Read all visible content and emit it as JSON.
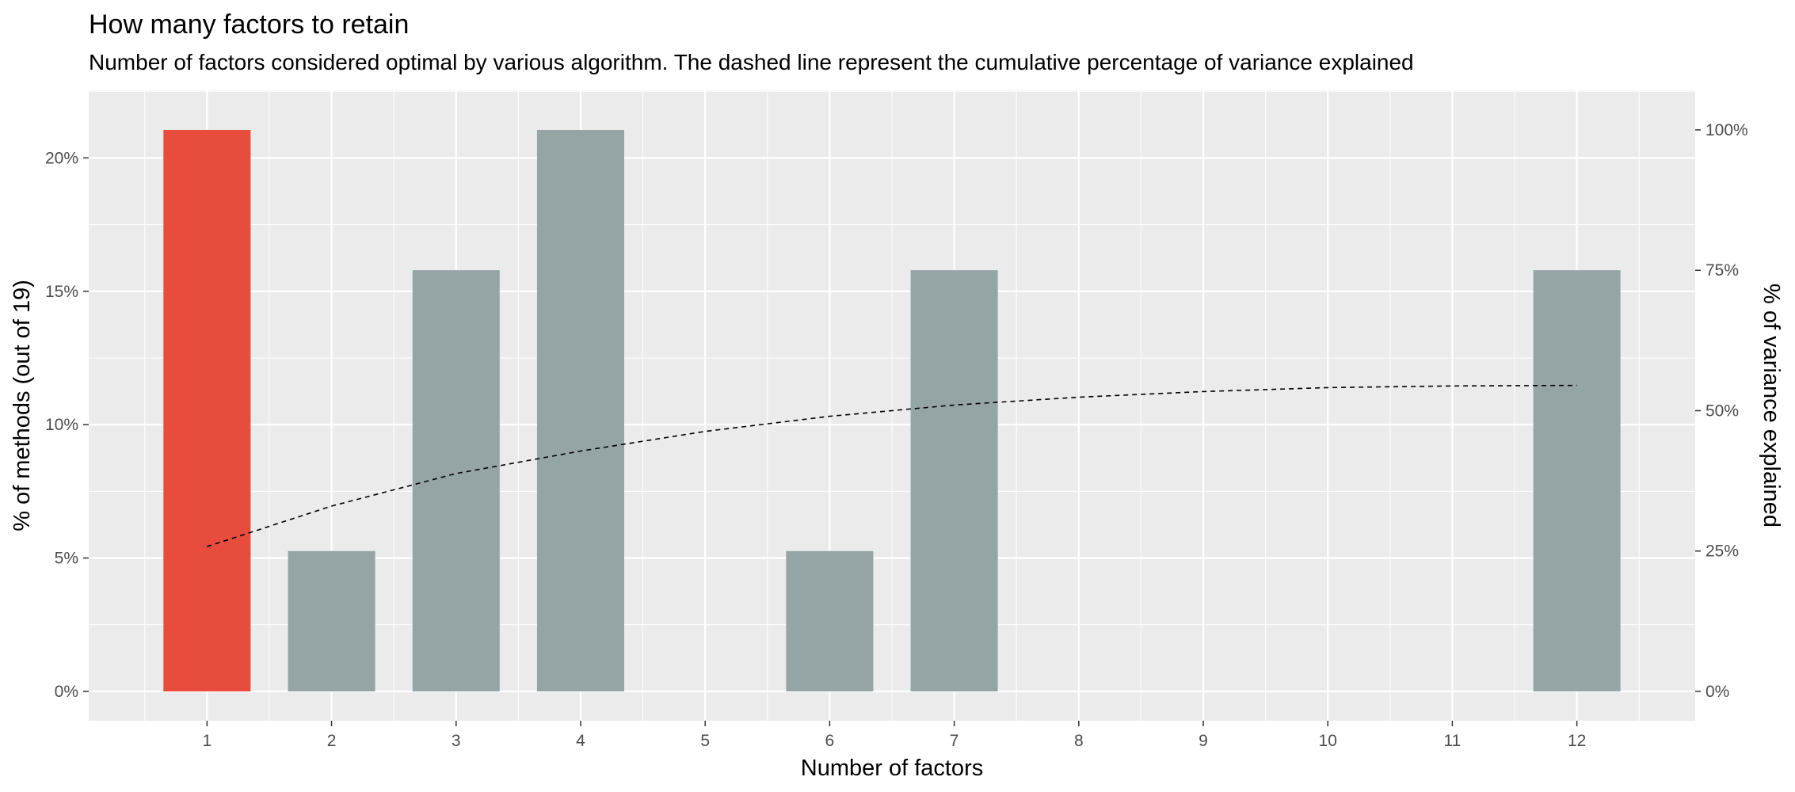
{
  "chart_data": {
    "type": "bar",
    "title": "How many factors to retain",
    "subtitle": "Number of factors considered optimal by various algorithm. The dashed line represent the cumulative percentage of variance explained",
    "xlabel": "Number of factors",
    "ylabel": "% of methods (out of 19)",
    "y2label": "% of variance explained",
    "categories": [
      "1",
      "2",
      "3",
      "4",
      "5",
      "6",
      "7",
      "8",
      "9",
      "10",
      "11",
      "12"
    ],
    "values": [
      21.05,
      5.26,
      15.79,
      21.05,
      0,
      5.26,
      15.79,
      0,
      0,
      0,
      0,
      15.79
    ],
    "highlighted_category": "1",
    "ylim": [
      0,
      22
    ],
    "yticks": [
      0,
      5,
      10,
      15,
      20
    ],
    "ytick_labels": [
      "0%",
      "5%",
      "10%",
      "15%",
      "20%"
    ],
    "y2lim": [
      0,
      100
    ],
    "y2ticks": [
      0,
      25,
      50,
      75,
      100
    ],
    "y2tick_labels": [
      "0%",
      "25%",
      "50%",
      "75%",
      "100%"
    ],
    "line_series": {
      "name": "Cumulative % of variance explained",
      "style": "dashed",
      "x": [
        1,
        2,
        3,
        4,
        5,
        6,
        7,
        8,
        9,
        10,
        11,
        12
      ],
      "values": [
        25.8,
        33.0,
        38.8,
        42.8,
        46.3,
        49.0,
        51.0,
        52.4,
        53.4,
        54.1,
        54.4,
        54.5
      ]
    },
    "grid": true,
    "legend": "none",
    "colors": {
      "highlight": "#e74c3c",
      "bar": "#95a5a6",
      "panel": "#ebebeb",
      "grid": "#ffffff",
      "line": "#000000"
    }
  }
}
